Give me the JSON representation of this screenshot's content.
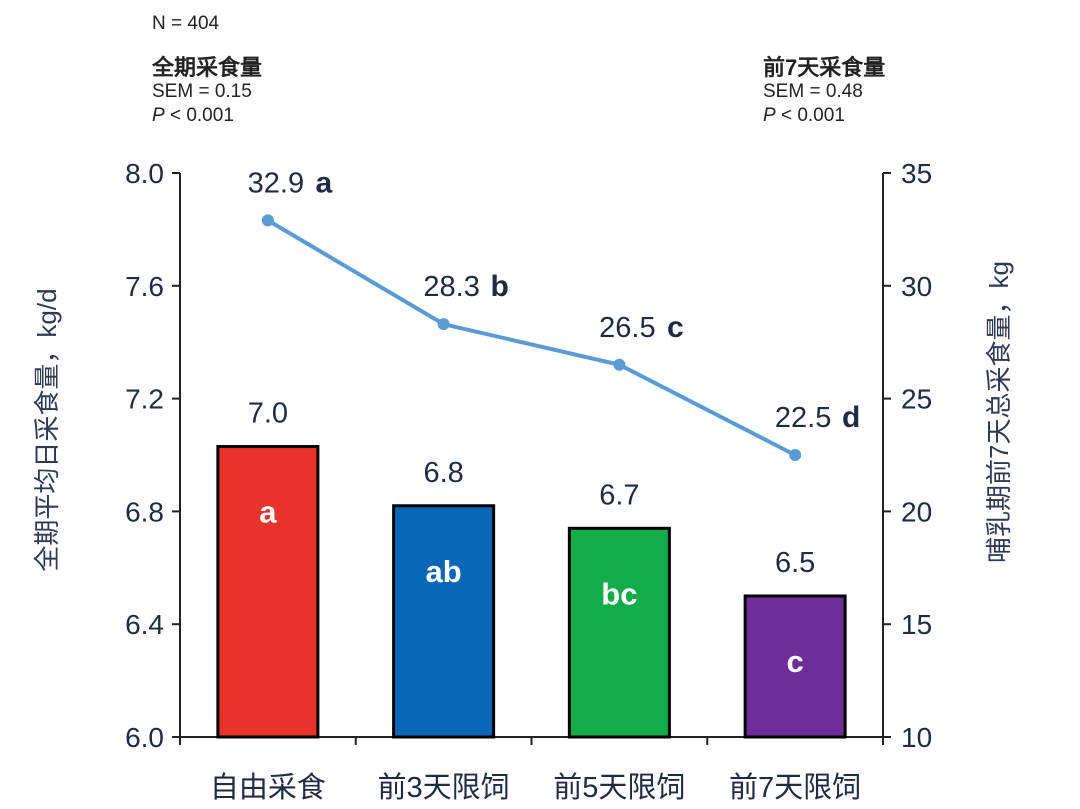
{
  "header": {
    "n_label": "N = 404",
    "left_title": "全期采食量",
    "left_sem": "SEM = 0.15",
    "left_p_symbol": "P",
    "left_p_rest": " < 0.001",
    "right_title": "前7天采食量",
    "right_sem": "SEM = 0.48",
    "right_p_symbol": "P",
    "right_p_rest": " < 0.001"
  },
  "chart_data": {
    "type": "bar",
    "categories": [
      "自由采食",
      "前3天限饲",
      "前5天限饲",
      "前7天限饲"
    ],
    "ylabel": "全期平均日采食量，kg/d",
    "y2label": "哺乳期前7天总采食量，kg",
    "ylim": [
      6.0,
      8.0
    ],
    "yticks": [
      "6.0",
      "6.4",
      "6.8",
      "7.2",
      "7.6",
      "8.0"
    ],
    "y2lim": [
      10,
      35
    ],
    "y2ticks": [
      "10",
      "15",
      "20",
      "25",
      "30",
      "35"
    ],
    "series": [
      {
        "type": "bar",
        "axis": "left",
        "values": [
          7.03,
          6.82,
          6.74,
          6.5
        ],
        "value_labels": [
          "7.0",
          "6.8",
          "6.7",
          "6.5"
        ],
        "letters": [
          "a",
          "ab",
          "bc",
          "c"
        ],
        "colors": [
          "#e8332b",
          "#0a67b8",
          "#12ad4a",
          "#6f2c9b"
        ]
      },
      {
        "type": "line",
        "axis": "right",
        "values": [
          32.9,
          28.3,
          26.5,
          22.5
        ],
        "value_labels": [
          "32.9",
          "28.3",
          "26.5",
          "22.5"
        ],
        "letters": [
          "a",
          "b",
          "c",
          "d"
        ],
        "color": "#5b9bd5"
      }
    ]
  }
}
